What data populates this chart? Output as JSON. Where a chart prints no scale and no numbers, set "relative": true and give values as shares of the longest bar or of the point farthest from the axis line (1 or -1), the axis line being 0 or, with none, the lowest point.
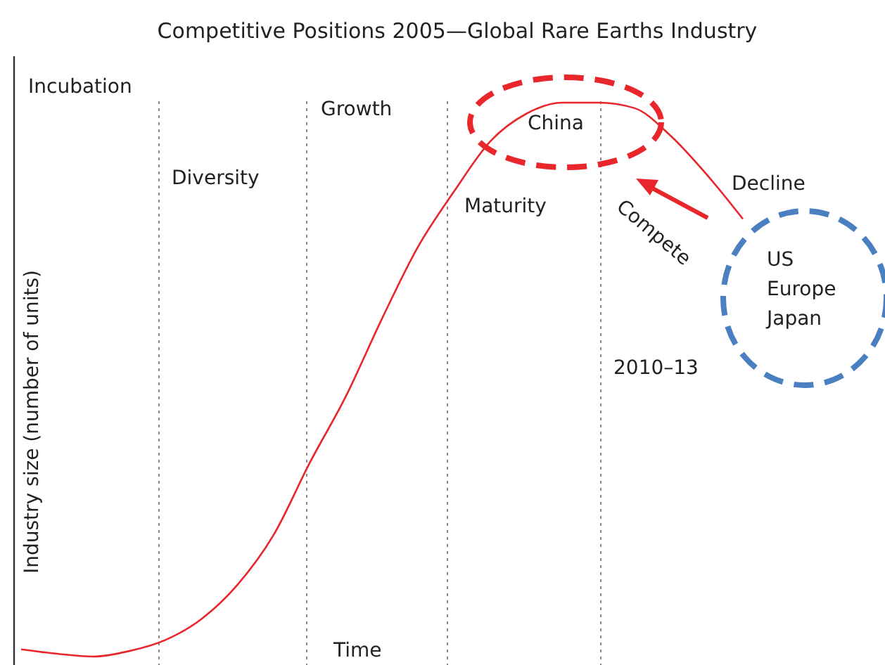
{
  "chart_data": {
    "type": "line",
    "title": "Competitive Positions 2005—Global Rare Earths Industry",
    "xlabel": "Time",
    "ylabel": "Industry size (number of units)",
    "relative": true,
    "categories": [
      null,
      null,
      null,
      null,
      null,
      null,
      null,
      null,
      null,
      null,
      null,
      null,
      null,
      null,
      null,
      null,
      null,
      null,
      null,
      null,
      null
    ],
    "series": [
      {
        "color": "#e8262b",
        "values": [
          0.013,
          0.005,
          0,
          0.01,
          0.03,
          0.068,
          0.13,
          0.22,
          0.35,
          0.47,
          0.61,
          0.74,
          0.84,
          0.93,
          0.98,
          1.0,
          1.0,
          0.99,
          0.94,
          0.87,
          0.79
        ]
      }
    ],
    "annotations": [
      "Incubation",
      "Diversity",
      "Growth",
      "Maturity",
      "China",
      "Decline",
      "Compete",
      "US",
      "Europe",
      "Japan",
      "2010–13"
    ]
  }
}
